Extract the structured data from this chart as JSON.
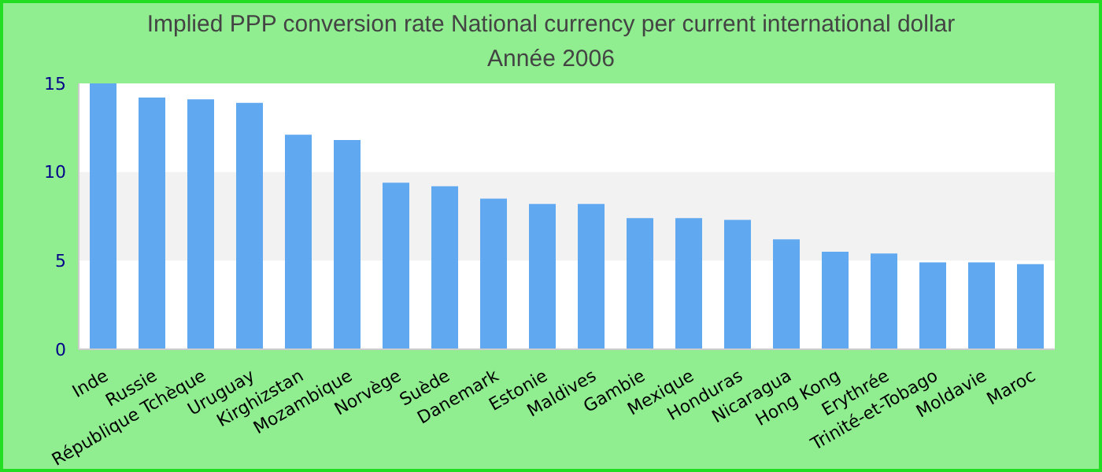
{
  "chart_data": {
    "type": "bar",
    "title": "Implied PPP conversion rate  National currency per current international dollar",
    "subtitle": "Année 2006",
    "categories": [
      "Inde",
      "Russie",
      "République Tchèque",
      "Uruguay",
      "Kirghizstan",
      "Mozambique",
      "Norvège",
      "Suède",
      "Danemark",
      "Estonie",
      "Maldives",
      "Gambie",
      "Mexique",
      "Honduras",
      "Nicaragua",
      "Hong Kong",
      "Erythrée",
      "Trinité-et-Tobago",
      "Moldavie",
      "Maroc"
    ],
    "values": [
      15.0,
      14.2,
      14.1,
      13.9,
      12.1,
      11.8,
      9.4,
      9.2,
      8.5,
      8.2,
      8.2,
      7.4,
      7.4,
      7.3,
      6.2,
      5.5,
      5.4,
      4.9,
      4.9,
      4.8
    ],
    "color": "#60a8f0",
    "ylim": [
      0,
      15
    ],
    "yticks": [
      0,
      5,
      10,
      15
    ],
    "bands": [
      {
        "axis": "y",
        "from": 5,
        "to": 10,
        "color": "#f2f2f2"
      }
    ]
  }
}
